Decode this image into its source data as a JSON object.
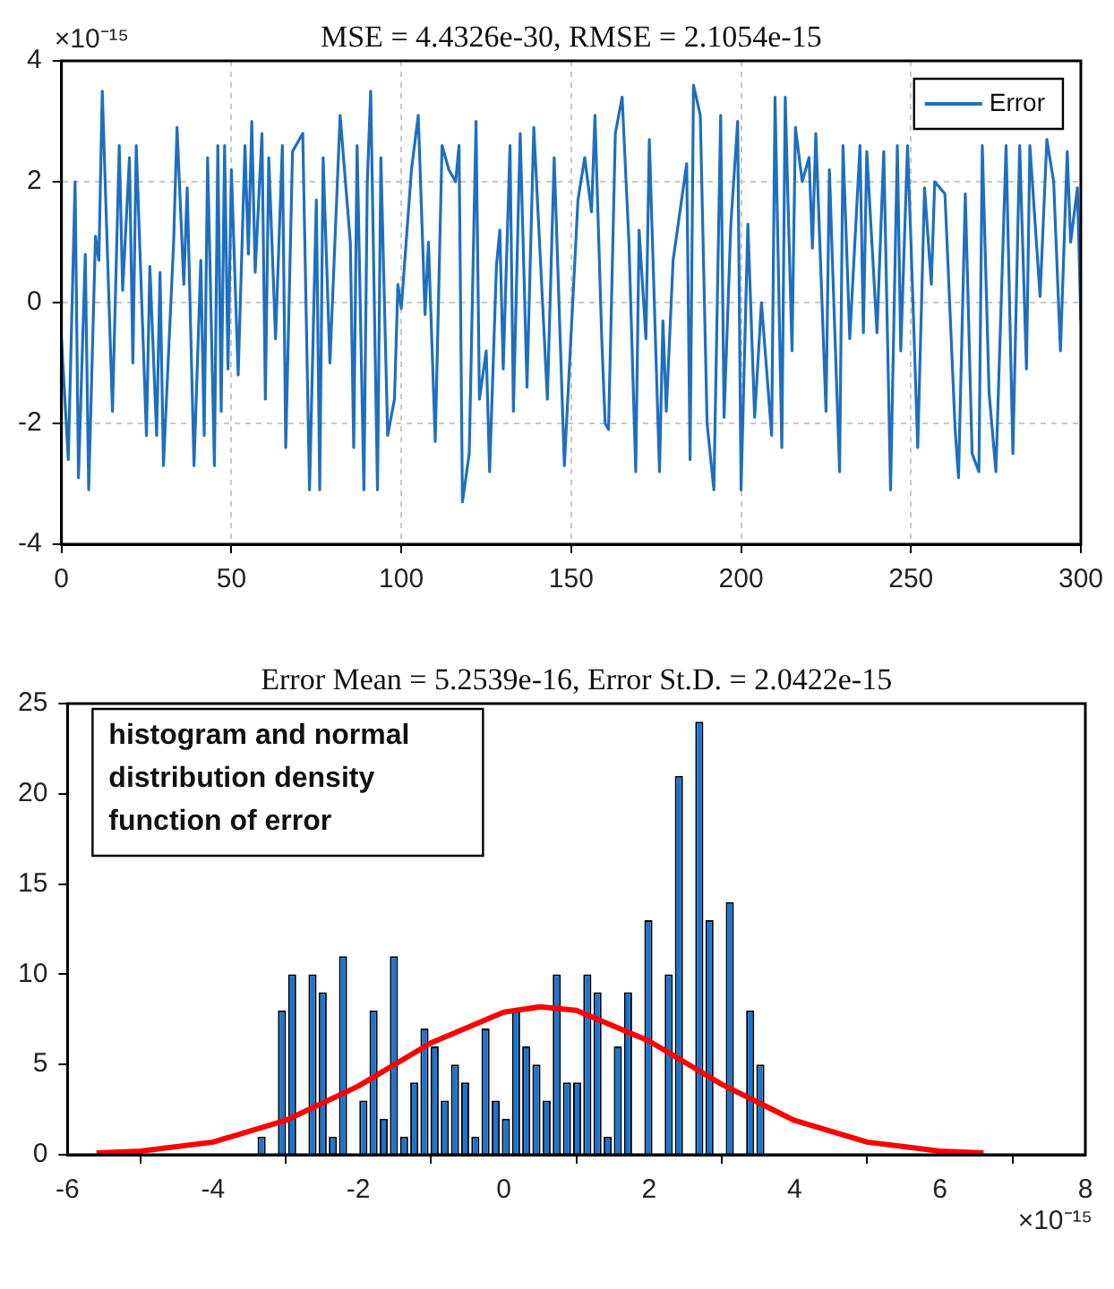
{
  "chart_data": [
    {
      "type": "line",
      "title": "MSE = 4.4326e-30, RMSE = 2.1054e-15",
      "annotations": [
        "×10⁻¹⁵"
      ],
      "x": [
        0,
        2,
        4,
        5,
        7,
        8,
        10,
        11,
        12,
        15,
        17,
        18,
        20,
        21,
        22,
        25,
        26,
        28,
        29,
        30,
        33,
        34,
        36,
        37,
        39,
        41,
        42,
        43,
        45,
        46,
        47,
        48,
        49,
        50,
        52,
        54,
        55,
        56,
        57,
        59,
        60,
        61,
        63,
        65,
        66,
        68,
        71,
        73,
        75,
        76,
        77,
        79,
        82,
        85,
        86,
        87,
        89,
        90,
        91,
        93,
        94,
        96,
        98,
        99,
        100,
        103,
        105,
        107,
        108,
        110,
        112,
        114,
        116,
        117,
        118,
        120,
        122,
        123,
        125,
        126,
        128,
        129,
        130,
        132,
        133,
        135,
        137,
        139,
        143,
        145,
        148,
        152,
        154,
        156,
        157,
        159,
        160,
        161,
        163,
        165,
        167,
        169,
        170,
        172,
        173,
        176,
        177,
        178,
        180,
        182,
        184,
        185,
        186,
        188,
        190,
        192,
        194,
        195,
        197,
        199,
        200,
        202,
        204,
        206,
        209,
        210,
        212,
        213,
        215,
        216,
        218,
        220,
        221,
        222,
        225,
        226,
        227,
        229,
        230,
        232,
        235,
        236,
        237,
        240,
        242,
        244,
        246,
        247,
        249,
        250,
        252,
        254,
        256,
        257,
        260,
        263,
        264,
        266,
        268,
        270,
        271,
        273,
        275,
        278,
        280,
        282,
        284,
        285,
        288,
        290,
        292,
        294,
        296,
        297,
        299,
        300
      ],
      "series": [
        {
          "name": "Error",
          "color": "#1f6fbf",
          "values": [
            -0.6,
            -2.6,
            2.0,
            -2.9,
            0.8,
            -3.1,
            1.1,
            0.7,
            3.5,
            -1.8,
            2.6,
            0.2,
            2.4,
            -1.0,
            2.6,
            -2.2,
            0.6,
            -2.2,
            0.5,
            -2.7,
            1.0,
            2.9,
            0.3,
            1.9,
            -2.7,
            0.7,
            -2.2,
            2.4,
            -2.7,
            2.6,
            -1.8,
            2.6,
            -1.1,
            2.2,
            -1.2,
            2.6,
            0.8,
            3.0,
            0.5,
            2.8,
            -1.6,
            2.4,
            -0.6,
            2.6,
            -2.4,
            2.5,
            2.8,
            -3.1,
            1.7,
            -3.1,
            2.4,
            -1.0,
            3.1,
            1.0,
            -2.4,
            2.6,
            -3.1,
            2.0,
            3.5,
            -3.1,
            2.4,
            -2.2,
            -1.6,
            0.3,
            -0.1,
            2.2,
            3.1,
            -0.2,
            1.0,
            -2.3,
            2.6,
            2.2,
            2.0,
            2.6,
            -3.3,
            -2.5,
            3.0,
            -1.6,
            -0.8,
            -2.8,
            0.6,
            1.2,
            -1.1,
            2.6,
            -1.8,
            2.8,
            -1.4,
            2.9,
            -1.6,
            2.4,
            -2.7,
            1.7,
            2.4,
            1.5,
            3.1,
            -0.6,
            -2.0,
            -2.1,
            2.8,
            3.4,
            1.0,
            -2.8,
            1.2,
            -0.6,
            2.7,
            -2.8,
            -0.3,
            -1.8,
            0.7,
            1.5,
            2.3,
            -2.6,
            3.6,
            3.1,
            -2.0,
            -3.1,
            3.1,
            -1.9,
            1.3,
            3.0,
            -3.1,
            1.3,
            -1.9,
            0.0,
            -2.2,
            3.4,
            -2.4,
            3.4,
            -0.8,
            2.9,
            2.0,
            2.4,
            0.9,
            2.8,
            -1.8,
            2.2,
            0.5,
            -2.8,
            2.6,
            -0.6,
            2.6,
            -0.5,
            2.5,
            -0.5,
            2.5,
            -3.1,
            2.6,
            -0.8,
            2.6,
            1.0,
            -2.4,
            1.9,
            0.3,
            2.0,
            1.8,
            -2.1,
            -2.9,
            1.8,
            -2.5,
            -2.8,
            2.6,
            -1.5,
            -2.8,
            2.6,
            -2.5,
            2.6,
            -1.1,
            2.6,
            0.1,
            2.7,
            2.0,
            -0.8,
            2.5,
            1.0,
            1.9,
            -0.3
          ]
        }
      ],
      "xlim": [
        0,
        300
      ],
      "xticks": [
        0,
        50,
        100,
        150,
        200,
        250,
        300
      ],
      "ylim": [
        -4,
        4
      ],
      "yticks": [
        -4,
        -2,
        0,
        2,
        4
      ],
      "grid": true,
      "legend": "top right"
    },
    {
      "type": "histogram",
      "title": "Error Mean = 5.2539e-16, Error St.D. = 2.0422e-15",
      "annotations": [
        "histogram and normal distribution density function of error",
        "×10⁻¹⁵"
      ],
      "bins": [
        -3.4,
        -3.26,
        -3.12,
        -2.98,
        -2.84,
        -2.7,
        -2.56,
        -2.42,
        -2.28,
        -2.14,
        -2.0,
        -1.86,
        -1.72,
        -1.58,
        -1.44,
        -1.3,
        -1.16,
        -1.02,
        -0.88,
        -0.74,
        -0.6,
        -0.46,
        -0.32,
        -0.18,
        -0.04,
        0.1,
        0.24,
        0.38,
        0.52,
        0.66,
        0.8,
        0.94,
        1.08,
        1.22,
        1.36,
        1.5,
        1.64,
        1.78,
        1.92,
        2.06,
        2.2,
        2.34,
        2.48,
        2.62,
        2.76,
        2.9,
        3.04,
        3.18,
        3.32,
        3.46,
        3.6
      ],
      "values": [
        1,
        0,
        8,
        10,
        0,
        10,
        9,
        1,
        11,
        0,
        3,
        8,
        2,
        11,
        1,
        4,
        7,
        6,
        3,
        5,
        4,
        1,
        7,
        3,
        2,
        8,
        6,
        5,
        3,
        10,
        4,
        4,
        10,
        9,
        1,
        6,
        9,
        0,
        13,
        0,
        10,
        21,
        0,
        24,
        13,
        0,
        14,
        0,
        8,
        5
      ],
      "color": "#1a75d1",
      "series": [
        {
          "type": "line",
          "color": "#ff0000",
          "x": [
            -5.6,
            -5,
            -4,
            -3,
            -2,
            -1,
            0,
            0.5,
            1,
            2,
            3,
            4,
            5,
            6,
            6.6
          ],
          "values": [
            0.1,
            0.2,
            0.7,
            1.9,
            3.8,
            6.2,
            7.9,
            8.2,
            8.0,
            6.3,
            3.9,
            1.9,
            0.7,
            0.2,
            0.1
          ]
        }
      ],
      "xlim": [
        -6,
        8
      ],
      "xticks": [
        -6,
        -4,
        -2,
        0,
        2,
        4,
        6,
        8
      ],
      "ylim": [
        0,
        25
      ],
      "yticks": [
        0,
        5,
        10,
        15,
        20,
        25
      ]
    }
  ]
}
